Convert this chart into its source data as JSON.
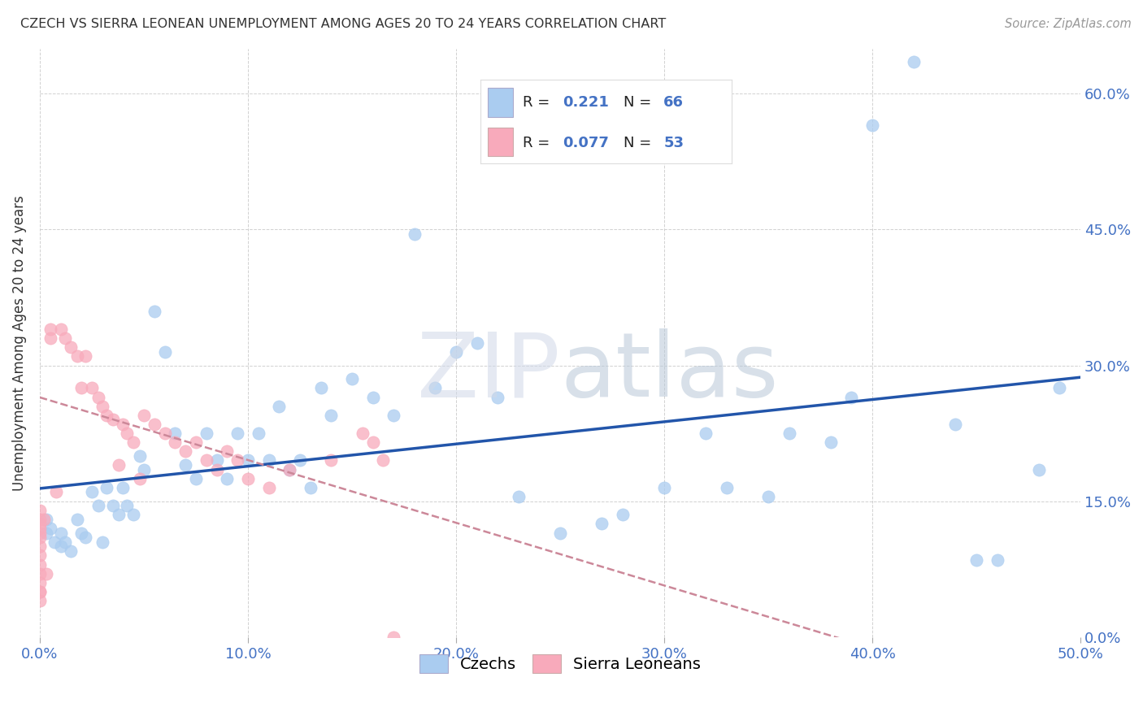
{
  "title": "CZECH VS SIERRA LEONEAN UNEMPLOYMENT AMONG AGES 20 TO 24 YEARS CORRELATION CHART",
  "source": "Source: ZipAtlas.com",
  "ylabel": "Unemployment Among Ages 20 to 24 years",
  "xlim": [
    0.0,
    0.5
  ],
  "ylim": [
    0.0,
    0.65
  ],
  "background_color": "#ffffff",
  "legend_R1": "0.221",
  "legend_N1": "66",
  "legend_R2": "0.077",
  "legend_N2": "53",
  "czech_color": "#aaccf0",
  "sierra_color": "#f8aabb",
  "trend_czech_color": "#2255aa",
  "trend_sierra_color": "#cc8899",
  "tick_color": "#4472c4",
  "grid_color": "#cccccc",
  "x_tick_vals": [
    0.0,
    0.1,
    0.2,
    0.3,
    0.4,
    0.5
  ],
  "x_tick_labels": [
    "0.0%",
    "10.0%",
    "20.0%",
    "30.0%",
    "40.0%",
    "50.0%"
  ],
  "y_tick_vals": [
    0.0,
    0.15,
    0.3,
    0.45,
    0.6
  ],
  "y_tick_labels": [
    "0.0%",
    "15.0%",
    "30.0%",
    "45.0%",
    "60.0%"
  ],
  "czech_points_x": [
    0.003,
    0.003,
    0.005,
    0.007,
    0.01,
    0.01,
    0.012,
    0.015,
    0.018,
    0.02,
    0.022,
    0.025,
    0.028,
    0.03,
    0.032,
    0.035,
    0.038,
    0.04,
    0.042,
    0.045,
    0.048,
    0.05,
    0.055,
    0.06,
    0.065,
    0.07,
    0.075,
    0.08,
    0.085,
    0.09,
    0.095,
    0.1,
    0.105,
    0.11,
    0.115,
    0.12,
    0.125,
    0.13,
    0.135,
    0.14,
    0.15,
    0.16,
    0.17,
    0.18,
    0.19,
    0.2,
    0.21,
    0.22,
    0.23,
    0.25,
    0.27,
    0.28,
    0.3,
    0.32,
    0.33,
    0.35,
    0.36,
    0.38,
    0.39,
    0.4,
    0.42,
    0.44,
    0.45,
    0.46,
    0.48,
    0.49
  ],
  "czech_points_y": [
    0.13,
    0.115,
    0.12,
    0.105,
    0.115,
    0.1,
    0.105,
    0.095,
    0.13,
    0.115,
    0.11,
    0.16,
    0.145,
    0.105,
    0.165,
    0.145,
    0.135,
    0.165,
    0.145,
    0.135,
    0.2,
    0.185,
    0.36,
    0.315,
    0.225,
    0.19,
    0.175,
    0.225,
    0.195,
    0.175,
    0.225,
    0.195,
    0.225,
    0.195,
    0.255,
    0.185,
    0.195,
    0.165,
    0.275,
    0.245,
    0.285,
    0.265,
    0.245,
    0.445,
    0.275,
    0.315,
    0.325,
    0.265,
    0.155,
    0.115,
    0.125,
    0.135,
    0.165,
    0.225,
    0.165,
    0.155,
    0.225,
    0.215,
    0.265,
    0.565,
    0.635,
    0.235,
    0.085,
    0.085,
    0.185,
    0.275
  ],
  "sierra_points_x": [
    0.0,
    0.0,
    0.0,
    0.0,
    0.0,
    0.0,
    0.0,
    0.0,
    0.0,
    0.0,
    0.0,
    0.0,
    0.005,
    0.005,
    0.008,
    0.01,
    0.012,
    0.015,
    0.018,
    0.02,
    0.022,
    0.025,
    0.028,
    0.03,
    0.032,
    0.035,
    0.038,
    0.04,
    0.042,
    0.045,
    0.048,
    0.05,
    0.055,
    0.06,
    0.065,
    0.07,
    0.075,
    0.08,
    0.085,
    0.09,
    0.095,
    0.1,
    0.11,
    0.12,
    0.14,
    0.155,
    0.16,
    0.165,
    0.17,
    0.0,
    0.0,
    0.002,
    0.003
  ],
  "sierra_points_y": [
    0.14,
    0.13,
    0.125,
    0.12,
    0.115,
    0.11,
    0.1,
    0.09,
    0.08,
    0.07,
    0.06,
    0.05,
    0.34,
    0.33,
    0.16,
    0.34,
    0.33,
    0.32,
    0.31,
    0.275,
    0.31,
    0.275,
    0.265,
    0.255,
    0.245,
    0.24,
    0.19,
    0.235,
    0.225,
    0.215,
    0.175,
    0.245,
    0.235,
    0.225,
    0.215,
    0.205,
    0.215,
    0.195,
    0.185,
    0.205,
    0.195,
    0.175,
    0.165,
    0.185,
    0.195,
    0.225,
    0.215,
    0.195,
    0.0,
    0.04,
    0.05,
    0.13,
    0.07
  ]
}
